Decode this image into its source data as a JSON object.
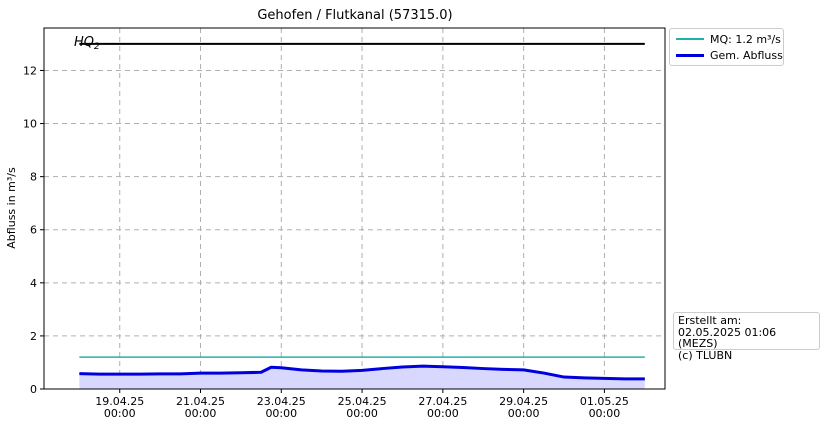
{
  "chart_data": {
    "type": "line",
    "title": "Gehofen / Flutkanal (57315.0)",
    "ylabel": "Abfluss in m³/s",
    "ylim": [
      0,
      13.6
    ],
    "yticks": [
      "0",
      "2",
      "4",
      "6",
      "8",
      "10",
      "12"
    ],
    "xlim": [
      "2025-04-17 03:00",
      "2025-05-02 12:00"
    ],
    "xticks": [
      {
        "date": "19.04.25",
        "time": "00:00"
      },
      {
        "date": "21.04.25",
        "time": "00:00"
      },
      {
        "date": "23.04.25",
        "time": "00:00"
      },
      {
        "date": "25.04.25",
        "time": "00:00"
      },
      {
        "date": "27.04.25",
        "time": "00:00"
      },
      {
        "date": "29.04.25",
        "time": "00:00"
      },
      {
        "date": "01.05.25",
        "time": "00:00"
      }
    ],
    "grid": true,
    "hq2": {
      "label": "HQ",
      "label_sub": "2",
      "value": 13.0
    },
    "series": [
      {
        "name": "MQ: 1.2 m³/s",
        "color": "#20b2aa",
        "x": [
          "2025-04-18 00:00",
          "2025-05-02 00:00"
        ],
        "y": [
          1.2,
          1.2
        ]
      },
      {
        "name": "Gem. Abfluss",
        "color": "#0000dd",
        "fill": "#d8d8ff",
        "x": [
          "2025-04-18 00:00",
          "2025-04-18 12:00",
          "2025-04-19 00:00",
          "2025-04-19 12:00",
          "2025-04-20 00:00",
          "2025-04-20 12:00",
          "2025-04-21 00:00",
          "2025-04-21 12:00",
          "2025-04-22 00:00",
          "2025-04-22 12:00",
          "2025-04-22 18:00",
          "2025-04-23 00:00",
          "2025-04-23 12:00",
          "2025-04-24 00:00",
          "2025-04-24 12:00",
          "2025-04-25 00:00",
          "2025-04-25 12:00",
          "2025-04-26 00:00",
          "2025-04-26 12:00",
          "2025-04-27 00:00",
          "2025-04-27 12:00",
          "2025-04-28 00:00",
          "2025-04-28 12:00",
          "2025-04-29 00:00",
          "2025-04-29 12:00",
          "2025-04-30 00:00",
          "2025-04-30 12:00",
          "2025-05-01 00:00",
          "2025-05-01 12:00",
          "2025-05-02 00:00"
        ],
        "y": [
          0.58,
          0.56,
          0.56,
          0.56,
          0.57,
          0.57,
          0.6,
          0.6,
          0.61,
          0.63,
          0.82,
          0.8,
          0.72,
          0.68,
          0.67,
          0.7,
          0.77,
          0.83,
          0.86,
          0.84,
          0.81,
          0.77,
          0.74,
          0.72,
          0.6,
          0.45,
          0.42,
          0.4,
          0.38,
          0.38
        ]
      }
    ]
  },
  "legend": {
    "items": [
      {
        "label": "MQ: 1.2 m³/s",
        "color": "#20b2aa"
      },
      {
        "label": "Gem. Abfluss",
        "color": "#0000dd"
      }
    ]
  },
  "note": {
    "line1": "Erstellt am:",
    "line2": "02.05.2025 01:06 (MEZS)",
    "line3": "(c) TLUBN"
  }
}
